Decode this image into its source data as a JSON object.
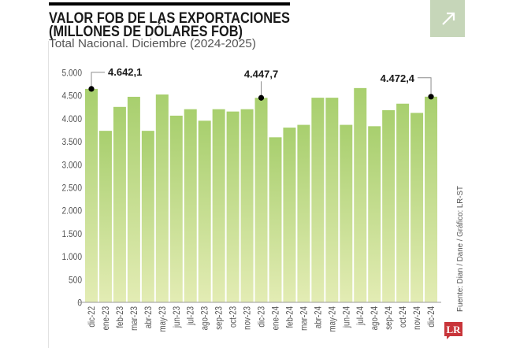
{
  "header": {
    "title_line1": "VALOR FOB DE LAS EXPORTACIONES",
    "title_line2": "(MILLONES DE DÓLARES FOB)",
    "subtitle": "Total Nacional. Diciembre (2024-2025)"
  },
  "share_button": {
    "icon": "arrow-up-right-icon",
    "color": "#c6d6b9"
  },
  "source": "Fuente: Dian / Dane / Gráfico: LR-ST",
  "logo": {
    "text": "LR",
    "color": "#c8353a"
  },
  "colors": {
    "bar_top": "#a8cf6e",
    "bar_bottom": "#e3ecb4",
    "axis": "#9a9a9a",
    "accent": "#000000"
  },
  "chart_data": {
    "type": "bar",
    "title": "VALOR FOB DE LAS EXPORTACIONES (MILLONES DE DÓLARES FOB)",
    "subtitle": "Total Nacional. Diciembre (2024-2025)",
    "xlabel": "",
    "ylabel": "",
    "ylim": [
      0,
      5000
    ],
    "yticks": [
      0,
      500,
      1000,
      1500,
      2000,
      2500,
      3000,
      3500,
      4000,
      4500,
      5000
    ],
    "ytick_labels": [
      "0",
      "500",
      "1.000",
      "1.500",
      "2.000",
      "2.500",
      "3.000",
      "3.500",
      "4.000",
      "4.500",
      "5.000"
    ],
    "grid": false,
    "legend": "none",
    "categories": [
      "dic-22",
      "ene-23",
      "feb-23",
      "mar-23",
      "abr-23",
      "may-23",
      "jun-23",
      "jul-23",
      "ago-23",
      "sep-23",
      "oct-23",
      "nov-23",
      "dic-23",
      "ene-24",
      "feb-24",
      "mar-24",
      "abr-24",
      "may-24",
      "jun-24",
      "jul-24",
      "ago-24",
      "sep-24",
      "oct-24",
      "nov-24",
      "dic-24"
    ],
    "values": [
      4642.1,
      3730,
      4250,
      4470,
      3730,
      4520,
      4060,
      4200,
      3950,
      4200,
      4150,
      4200,
      4447.7,
      3590,
      3800,
      3860,
      4450,
      4450,
      3860,
      4660,
      3830,
      4180,
      4320,
      4120,
      4472.4
    ],
    "annotations": [
      {
        "index": 0,
        "label": "4.642,1",
        "side": "right"
      },
      {
        "index": 12,
        "label": "4.447,7",
        "side": "above"
      },
      {
        "index": 24,
        "label": "4.472,4",
        "side": "left"
      }
    ],
    "source": "Fuente: Dian / Dane / Gráfico: LR-ST"
  }
}
